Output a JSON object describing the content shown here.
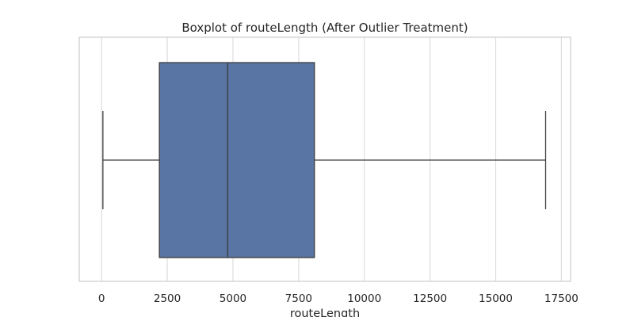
{
  "chart_data": {
    "type": "box",
    "title": "Boxplot of routeLength (After Outlier Treatment)",
    "xlabel": "routeLength",
    "ylabel": "",
    "orientation": "horizontal",
    "xlim": [
      -850,
      17850
    ],
    "xticks": [
      0,
      2500,
      5000,
      7500,
      10000,
      12500,
      15000,
      17500
    ],
    "tick_labels": [
      "0",
      "2500",
      "5000",
      "7500",
      "10000",
      "12500",
      "15000",
      "17500"
    ],
    "grid": true,
    "series": [
      {
        "whisker_low": 50,
        "q1": 2200,
        "median": 4800,
        "q3": 8100,
        "whisker_high": 16900
      }
    ],
    "colors": {
      "box_fill": "#5875a4",
      "line": "#3c3c3c",
      "grid": "#dddddd",
      "frame": "#cccccc",
      "text": "#262626"
    }
  }
}
